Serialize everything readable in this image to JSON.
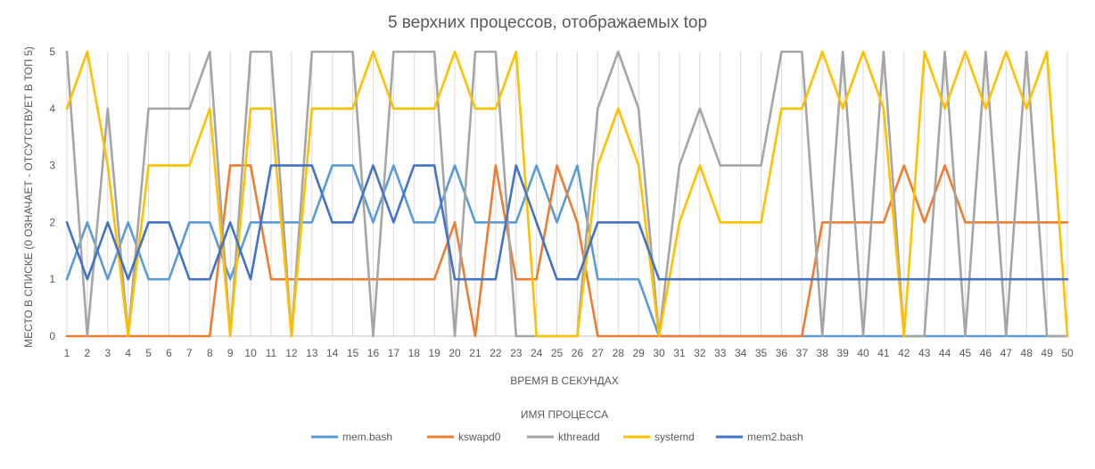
{
  "chart_data": {
    "type": "line",
    "title": "5 верхних процессов, отображаемых top",
    "xlabel": "ВРЕМЯ В СЕКУНДАХ",
    "ylabel": "МЕСТО В СПИСКЕ (0 ОЗНАЧАЕТ - ОТСУТСТВУЕТ В ТОП 5)",
    "legend_title": "ИМЯ ПРОЦЕССА",
    "legend_position": "bottom",
    "grid": "vertical",
    "ylim": [
      0,
      5
    ],
    "y_ticks": [
      "0",
      "1",
      "2",
      "3",
      "4",
      "5"
    ],
    "x": [
      "1",
      "2",
      "3",
      "4",
      "5",
      "6",
      "7",
      "8",
      "9",
      "10",
      "11",
      "12",
      "13",
      "14",
      "15",
      "16",
      "17",
      "18",
      "19",
      "20",
      "21",
      "22",
      "23",
      "24",
      "25",
      "26",
      "27",
      "28",
      "29",
      "30",
      "31",
      "32",
      "33",
      "34",
      "35",
      "36",
      "37",
      "38",
      "39",
      "40",
      "41",
      "42",
      "43",
      "44",
      "45",
      "46",
      "47",
      "48",
      "49",
      "50"
    ],
    "series": [
      {
        "name": "mem.bash",
        "color": "#5b9bd5",
        "values": [
          1,
          2,
          1,
          2,
          1,
          1,
          2,
          2,
          1,
          2,
          2,
          2,
          2,
          3,
          3,
          2,
          3,
          2,
          2,
          3,
          2,
          2,
          2,
          3,
          2,
          3,
          1,
          1,
          1,
          0,
          0,
          0,
          0,
          0,
          0,
          0,
          0,
          0,
          0,
          0,
          0,
          0,
          0,
          0,
          0,
          0,
          0,
          0,
          0,
          0
        ]
      },
      {
        "name": "kswapd0",
        "color": "#ed7d31",
        "values": [
          0,
          0,
          0,
          0,
          0,
          0,
          0,
          0,
          3,
          3,
          1,
          1,
          1,
          1,
          1,
          1,
          1,
          1,
          1,
          2,
          0,
          3,
          1,
          1,
          3,
          2,
          0,
          0,
          0,
          0,
          0,
          0,
          0,
          0,
          0,
          0,
          0,
          2,
          2,
          2,
          2,
          3,
          2,
          3,
          2,
          2,
          2,
          2,
          2,
          2
        ]
      },
      {
        "name": "kthreadd",
        "color": "#a5a5a5",
        "values": [
          5,
          0,
          4,
          0,
          4,
          4,
          4,
          5,
          0,
          5,
          5,
          0,
          5,
          5,
          5,
          0,
          5,
          5,
          5,
          0,
          5,
          5,
          0,
          0,
          0,
          0,
          4,
          5,
          4,
          0,
          3,
          4,
          3,
          3,
          3,
          5,
          5,
          0,
          5,
          0,
          5,
          0,
          0,
          5,
          0,
          5,
          0,
          5,
          0,
          0
        ]
      },
      {
        "name": "systemd",
        "color": "#ffc000",
        "values": [
          4,
          5,
          3,
          0,
          3,
          3,
          3,
          4,
          0,
          4,
          4,
          0,
          4,
          4,
          4,
          5,
          4,
          4,
          4,
          5,
          4,
          4,
          5,
          0,
          0,
          0,
          3,
          4,
          3,
          0,
          2,
          3,
          2,
          2,
          2,
          4,
          4,
          5,
          4,
          5,
          4,
          0,
          5,
          4,
          5,
          4,
          5,
          4,
          5,
          0
        ]
      },
      {
        "name": "mem2.bash",
        "color": "#4472c4",
        "values": [
          2,
          1,
          2,
          1,
          2,
          2,
          1,
          1,
          2,
          1,
          3,
          3,
          3,
          2,
          2,
          3,
          2,
          3,
          3,
          1,
          1,
          1,
          3,
          2,
          1,
          1,
          2,
          2,
          2,
          1,
          1,
          1,
          1,
          1,
          1,
          1,
          1,
          1,
          1,
          1,
          1,
          1,
          1,
          1,
          1,
          1,
          1,
          1,
          1,
          1
        ]
      }
    ]
  }
}
